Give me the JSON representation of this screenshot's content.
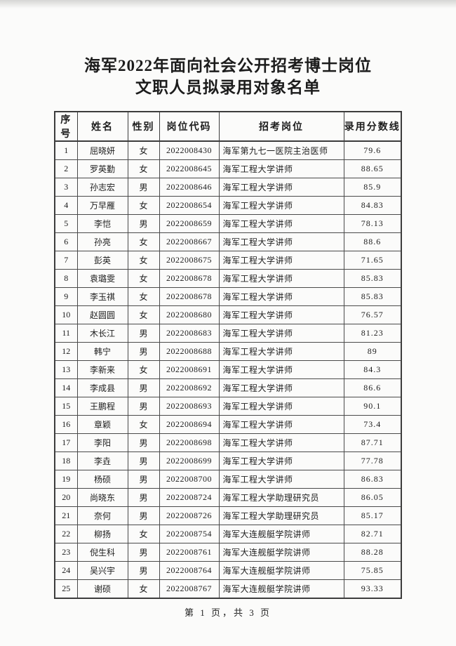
{
  "page": {
    "title_line1": "海军2022年面向社会公开招考博士岗位",
    "title_line2": "文职人员拟录用对象名单",
    "footer": "第 1 页，共 3 页"
  },
  "table": {
    "headers": [
      "序号",
      "姓名",
      "性别",
      "岗位代码",
      "招考岗位",
      "录用分数线"
    ],
    "rows": [
      [
        "1",
        "屈晓妍",
        "女",
        "2022008430",
        "海军第九七一医院主治医师",
        "79.6"
      ],
      [
        "2",
        "罗英勤",
        "女",
        "2022008645",
        "海军工程大学讲师",
        "88.65"
      ],
      [
        "3",
        "孙志宏",
        "男",
        "2022008646",
        "海军工程大学讲师",
        "85.9"
      ],
      [
        "4",
        "万早雁",
        "女",
        "2022008654",
        "海军工程大学讲师",
        "84.83"
      ],
      [
        "5",
        "李恺",
        "男",
        "2022008659",
        "海军工程大学讲师",
        "78.13"
      ],
      [
        "6",
        "孙亮",
        "女",
        "2022008667",
        "海军工程大学讲师",
        "88.6"
      ],
      [
        "7",
        "彭英",
        "女",
        "2022008675",
        "海军工程大学讲师",
        "71.65"
      ],
      [
        "8",
        "袁璐雯",
        "女",
        "2022008678",
        "海军工程大学讲师",
        "85.83"
      ],
      [
        "9",
        "李玉祺",
        "女",
        "2022008678",
        "海军工程大学讲师",
        "85.83"
      ],
      [
        "10",
        "赵圆圆",
        "女",
        "2022008680",
        "海军工程大学讲师",
        "76.57"
      ],
      [
        "11",
        "木长江",
        "男",
        "2022008683",
        "海军工程大学讲师",
        "81.23"
      ],
      [
        "12",
        "韩宁",
        "男",
        "2022008688",
        "海军工程大学讲师",
        "89"
      ],
      [
        "13",
        "李新来",
        "女",
        "2022008691",
        "海军工程大学讲师",
        "84.3"
      ],
      [
        "14",
        "李成县",
        "男",
        "2022008692",
        "海军工程大学讲师",
        "86.6"
      ],
      [
        "15",
        "王鹏程",
        "男",
        "2022008693",
        "海军工程大学讲师",
        "90.1"
      ],
      [
        "16",
        "章颖",
        "女",
        "2022008694",
        "海军工程大学讲师",
        "73.4"
      ],
      [
        "17",
        "李阳",
        "男",
        "2022008698",
        "海军工程大学讲师",
        "87.71"
      ],
      [
        "18",
        "李垚",
        "男",
        "2022008699",
        "海军工程大学讲师",
        "77.78"
      ],
      [
        "19",
        "杨硕",
        "男",
        "2022008700",
        "海军工程大学讲师",
        "86.83"
      ],
      [
        "20",
        "尚晓东",
        "男",
        "2022008724",
        "海军工程大学助理研究员",
        "86.05"
      ],
      [
        "21",
        "奈何",
        "男",
        "2022008726",
        "海军工程大学助理研究员",
        "85.17"
      ],
      [
        "22",
        "柳扬",
        "女",
        "2022008754",
        "海军大连舰艇学院讲师",
        "82.71"
      ],
      [
        "23",
        "倪生科",
        "男",
        "2022008761",
        "海军大连舰艇学院讲师",
        "88.28"
      ],
      [
        "24",
        "吴兴宇",
        "男",
        "2022008764",
        "海军大连舰艇学院讲师",
        "75.85"
      ],
      [
        "25",
        "谢硕",
        "女",
        "2022008767",
        "海军大连舰艇学院讲师",
        "93.33"
      ]
    ]
  }
}
